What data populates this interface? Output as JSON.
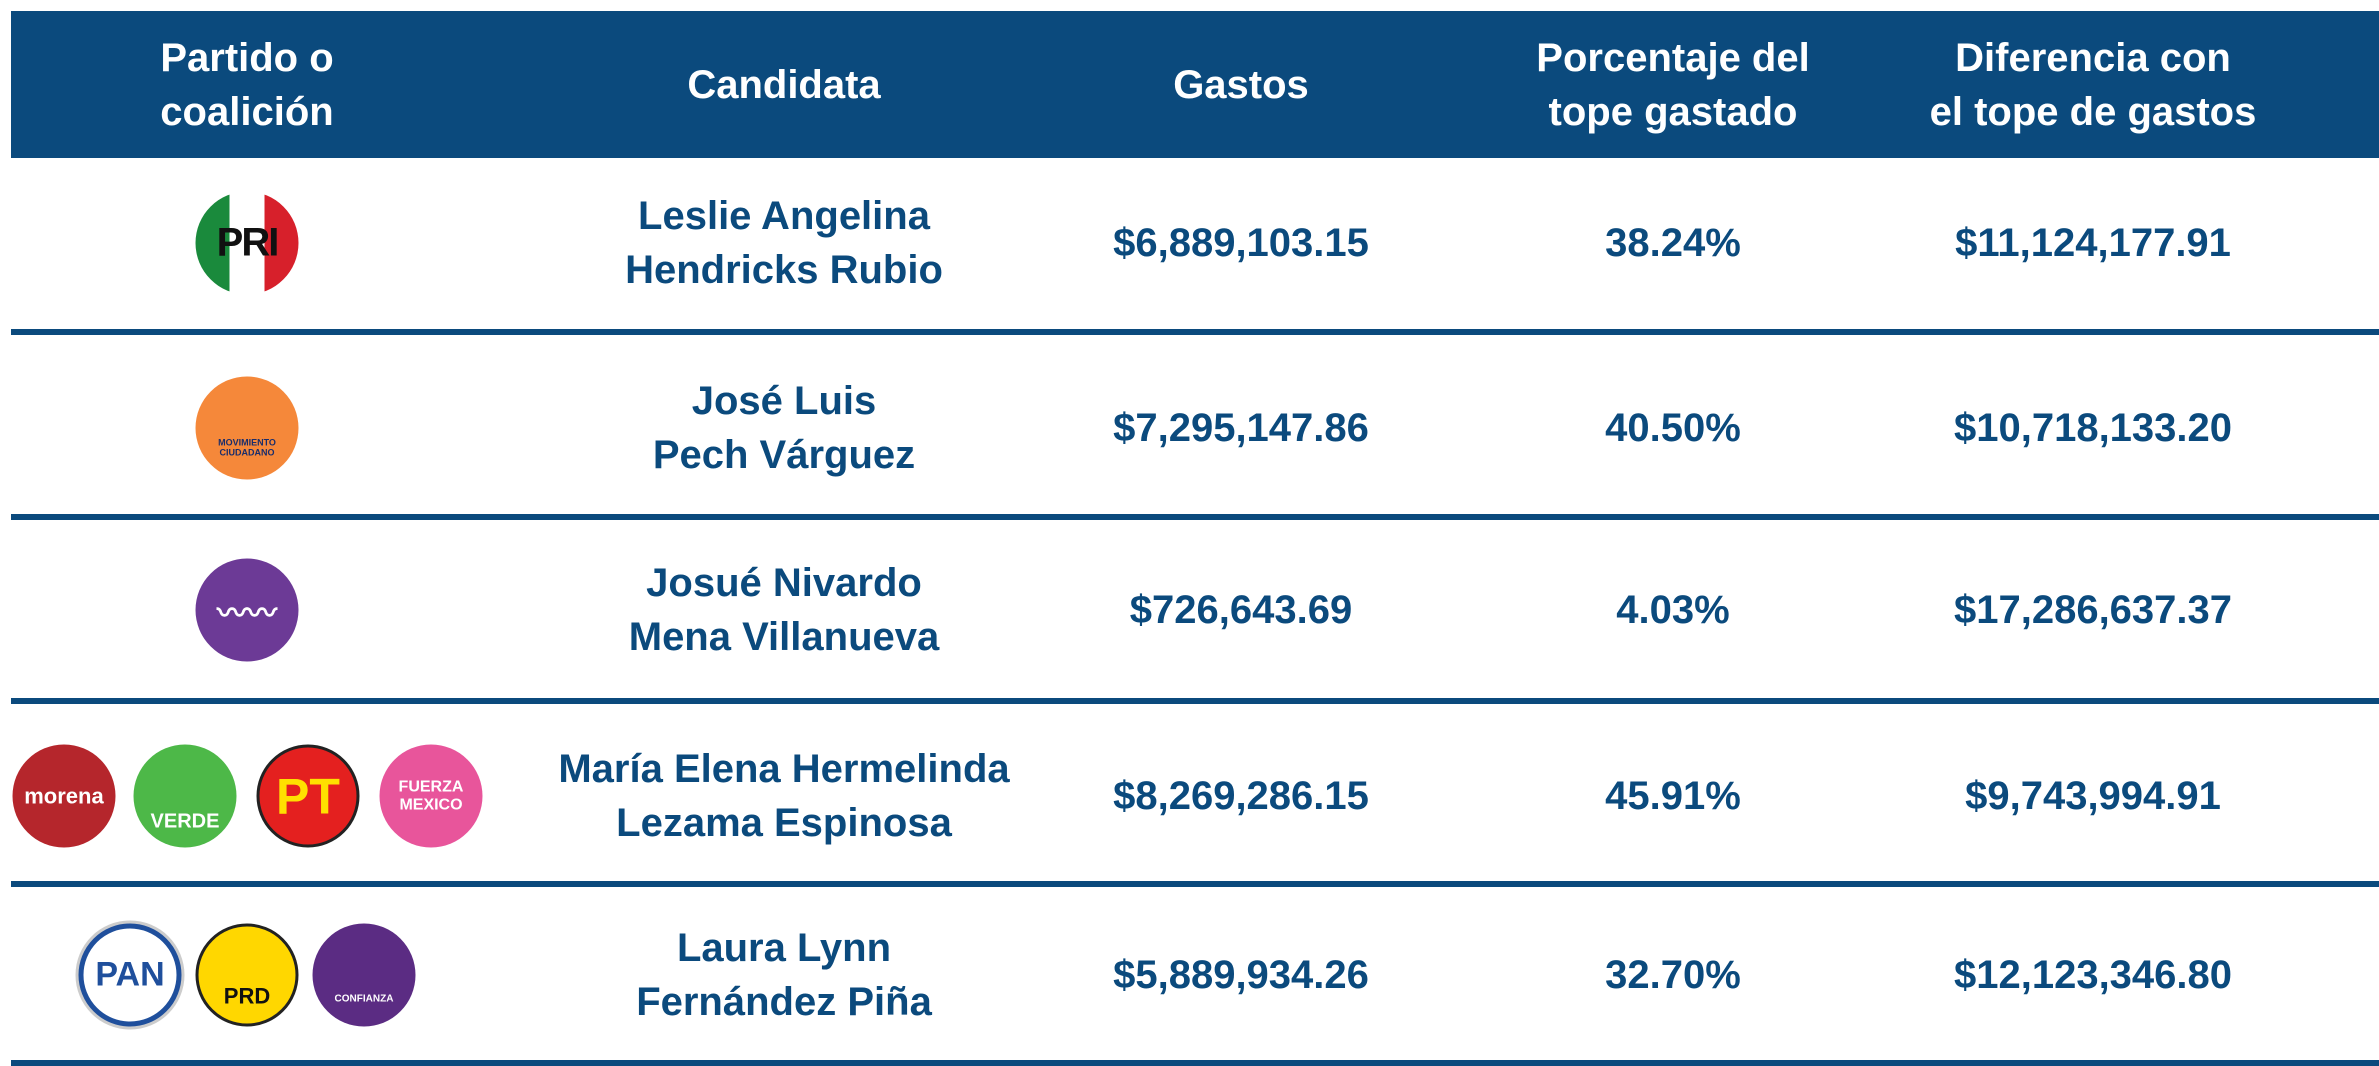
{
  "table": {
    "header": [
      [
        "Partido o",
        "coalición"
      ],
      [
        "Candidata"
      ],
      [
        "Gastos"
      ],
      [
        "Porcentaje del",
        "tope gastado"
      ],
      [
        "Diferencia con",
        "el tope de gastos"
      ]
    ],
    "rows": [
      {
        "logos": [
          "PRI"
        ],
        "candidate": [
          "Leslie Angelina",
          "Hendricks Rubio"
        ],
        "gastos": "$6,889,103.15",
        "porcentaje": "38.24%",
        "diferencia": "$11,124,177.91"
      },
      {
        "logos": [
          "MOVIMIENTO CIUDADANO"
        ],
        "candidate": [
          "José Luis",
          "Pech Várguez"
        ],
        "gastos": "$7,295,147.86",
        "porcentaje": "40.50%",
        "diferencia": "$10,718,133.20"
      },
      {
        "logos": [
          "〰〰"
        ],
        "candidate": [
          "Josué Nivardo",
          "Mena Villanueva"
        ],
        "gastos": "$726,643.69",
        "porcentaje": "4.03%",
        "diferencia": "$17,286,637.37"
      },
      {
        "logos": [
          "morena",
          "VERDE",
          "PT",
          "FUERZA MEXICO"
        ],
        "candidate": [
          "María Elena Hermelinda",
          "Lezama Espinosa"
        ],
        "gastos": "$8,269,286.15",
        "porcentaje": "45.91%",
        "diferencia": "$9,743,994.91"
      },
      {
        "logos": [
          "PAN",
          "PRD",
          "CONFIANZA"
        ],
        "candidate": [
          "Laura Lynn",
          "Fernández Piña"
        ],
        "gastos": "$5,889,934.26",
        "porcentaje": "32.70%",
        "diferencia": "$12,123,346.80"
      }
    ]
  }
}
